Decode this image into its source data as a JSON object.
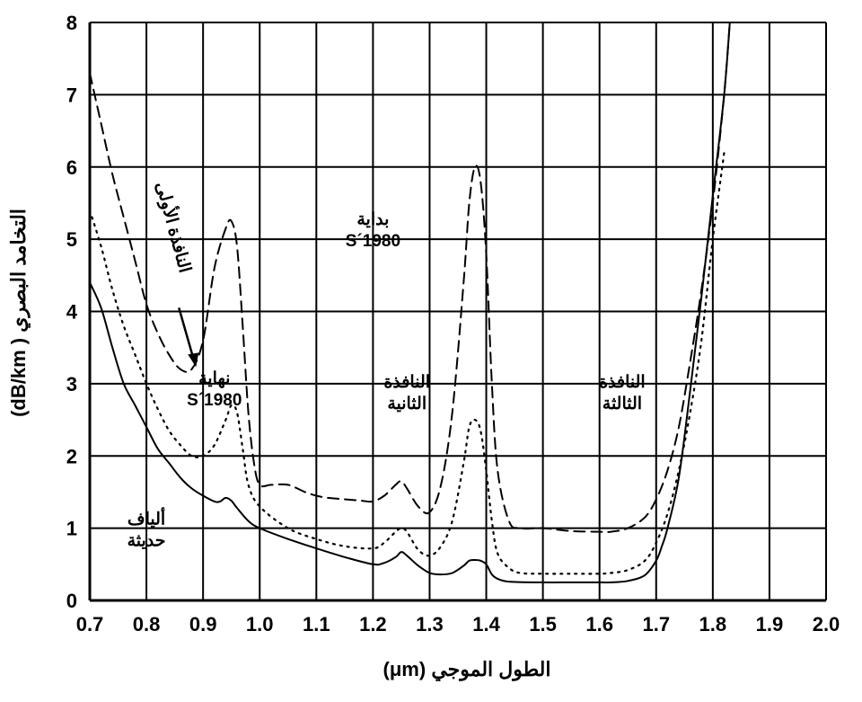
{
  "chart_data": {
    "type": "line",
    "title": "",
    "xlabel": "الطول الموجي (μm)",
    "ylabel": "التخامد البصري ( dB/km)",
    "xlim": [
      0.7,
      2.0
    ],
    "ylim": [
      0,
      8
    ],
    "xticks": [
      "0.7",
      "0.8",
      "0.9",
      "1.0",
      "1.1",
      "1.2",
      "1.3",
      "1.4",
      "1.5",
      "1.6",
      "1.7",
      "1.8",
      "1.9",
      "2.0"
    ],
    "yticks": [
      "0",
      "1",
      "2",
      "3",
      "4",
      "5",
      "6",
      "7",
      "8"
    ],
    "grid": true,
    "series": [
      {
        "style": "dashed",
        "x": [
          0.7,
          0.72,
          0.74,
          0.76,
          0.78,
          0.8,
          0.82,
          0.84,
          0.86,
          0.88,
          0.9,
          0.92,
          0.94,
          0.95,
          0.96,
          0.97,
          0.98,
          0.99,
          1.0,
          1.02,
          1.05,
          1.08,
          1.1,
          1.12,
          1.15,
          1.18,
          1.2,
          1.22,
          1.24,
          1.25,
          1.26,
          1.28,
          1.3,
          1.32,
          1.34,
          1.36,
          1.37,
          1.38,
          1.39,
          1.4,
          1.41,
          1.42,
          1.44,
          1.46,
          1.5,
          1.55,
          1.6,
          1.62,
          1.65,
          1.68,
          1.7,
          1.72,
          1.74,
          1.76,
          1.78,
          1.8,
          1.82,
          1.83
        ],
        "y": [
          7.3,
          6.6,
          5.9,
          5.3,
          4.7,
          4.1,
          3.7,
          3.4,
          3.2,
          3.2,
          3.6,
          4.6,
          5.15,
          5.25,
          4.9,
          3.8,
          2.6,
          1.9,
          1.6,
          1.6,
          1.6,
          1.5,
          1.45,
          1.42,
          1.4,
          1.38,
          1.37,
          1.45,
          1.6,
          1.65,
          1.55,
          1.3,
          1.22,
          1.6,
          2.6,
          4.4,
          5.5,
          6.0,
          5.8,
          4.8,
          3.0,
          1.8,
          1.1,
          1.0,
          1.0,
          0.96,
          0.95,
          0.95,
          1.0,
          1.15,
          1.4,
          1.8,
          2.4,
          3.3,
          4.3,
          5.5,
          7.0,
          8.0
        ]
      },
      {
        "style": "dotted",
        "x": [
          0.7,
          0.72,
          0.74,
          0.76,
          0.78,
          0.8,
          0.82,
          0.84,
          0.86,
          0.88,
          0.9,
          0.92,
          0.94,
          0.95,
          0.96,
          0.97,
          0.98,
          1.0,
          1.05,
          1.1,
          1.15,
          1.2,
          1.22,
          1.24,
          1.25,
          1.26,
          1.28,
          1.3,
          1.32,
          1.34,
          1.36,
          1.37,
          1.38,
          1.39,
          1.4,
          1.41,
          1.42,
          1.44,
          1.46,
          1.5,
          1.55,
          1.6,
          1.62,
          1.65,
          1.68,
          1.7,
          1.72,
          1.74,
          1.76,
          1.78,
          1.8,
          1.82
        ],
        "y": [
          5.4,
          4.9,
          4.3,
          3.8,
          3.4,
          3.0,
          2.65,
          2.35,
          2.15,
          2.0,
          2.0,
          2.15,
          2.5,
          2.7,
          2.6,
          2.1,
          1.6,
          1.3,
          1.0,
          0.85,
          0.75,
          0.72,
          0.8,
          0.95,
          1.0,
          0.95,
          0.7,
          0.62,
          0.75,
          1.1,
          1.9,
          2.4,
          2.5,
          2.35,
          1.8,
          1.1,
          0.65,
          0.45,
          0.38,
          0.37,
          0.37,
          0.37,
          0.38,
          0.42,
          0.55,
          0.8,
          1.2,
          1.8,
          2.6,
          3.6,
          5.0,
          6.2
        ]
      },
      {
        "style": "solid",
        "x": [
          0.7,
          0.72,
          0.74,
          0.76,
          0.78,
          0.8,
          0.82,
          0.84,
          0.86,
          0.88,
          0.9,
          0.92,
          0.93,
          0.94,
          0.95,
          0.96,
          0.98,
          1.0,
          1.05,
          1.1,
          1.15,
          1.2,
          1.22,
          1.24,
          1.25,
          1.26,
          1.28,
          1.3,
          1.32,
          1.34,
          1.36,
          1.37,
          1.38,
          1.39,
          1.4,
          1.41,
          1.42,
          1.44,
          1.5,
          1.55,
          1.6,
          1.62,
          1.65,
          1.68,
          1.7,
          1.71,
          1.72,
          1.74,
          1.76,
          1.78,
          1.8,
          1.82,
          1.83
        ],
        "y": [
          4.4,
          4.05,
          3.5,
          3.0,
          2.7,
          2.4,
          2.1,
          1.9,
          1.7,
          1.55,
          1.45,
          1.37,
          1.37,
          1.42,
          1.38,
          1.28,
          1.1,
          1.0,
          0.85,
          0.72,
          0.6,
          0.5,
          0.52,
          0.6,
          0.67,
          0.62,
          0.48,
          0.38,
          0.36,
          0.38,
          0.48,
          0.55,
          0.56,
          0.55,
          0.5,
          0.36,
          0.3,
          0.26,
          0.25,
          0.25,
          0.25,
          0.25,
          0.27,
          0.35,
          0.55,
          0.75,
          1.0,
          1.7,
          2.9,
          4.2,
          5.6,
          7.0,
          8.0
        ]
      }
    ],
    "annotations": [
      {
        "lines": [
          "النافذة الأولى"
        ],
        "x": 0.87,
        "y": 4.4,
        "rotate": true
      },
      {
        "lines": [
          "بداية",
          "1980´S"
        ],
        "x": 1.2,
        "y": 5.2
      },
      {
        "lines": [
          "نهاية",
          "1980´S"
        ],
        "x": 0.92,
        "y": 3.0
      },
      {
        "lines": [
          "النافذة",
          "الثانية"
        ],
        "x": 1.26,
        "y": 2.95
      },
      {
        "lines": [
          "النافذة",
          "الثالثة"
        ],
        "x": 1.64,
        "y": 2.95
      },
      {
        "lines": [
          "ألياف",
          "حديثة"
        ],
        "x": 0.8,
        "y": 1.05
      }
    ]
  }
}
